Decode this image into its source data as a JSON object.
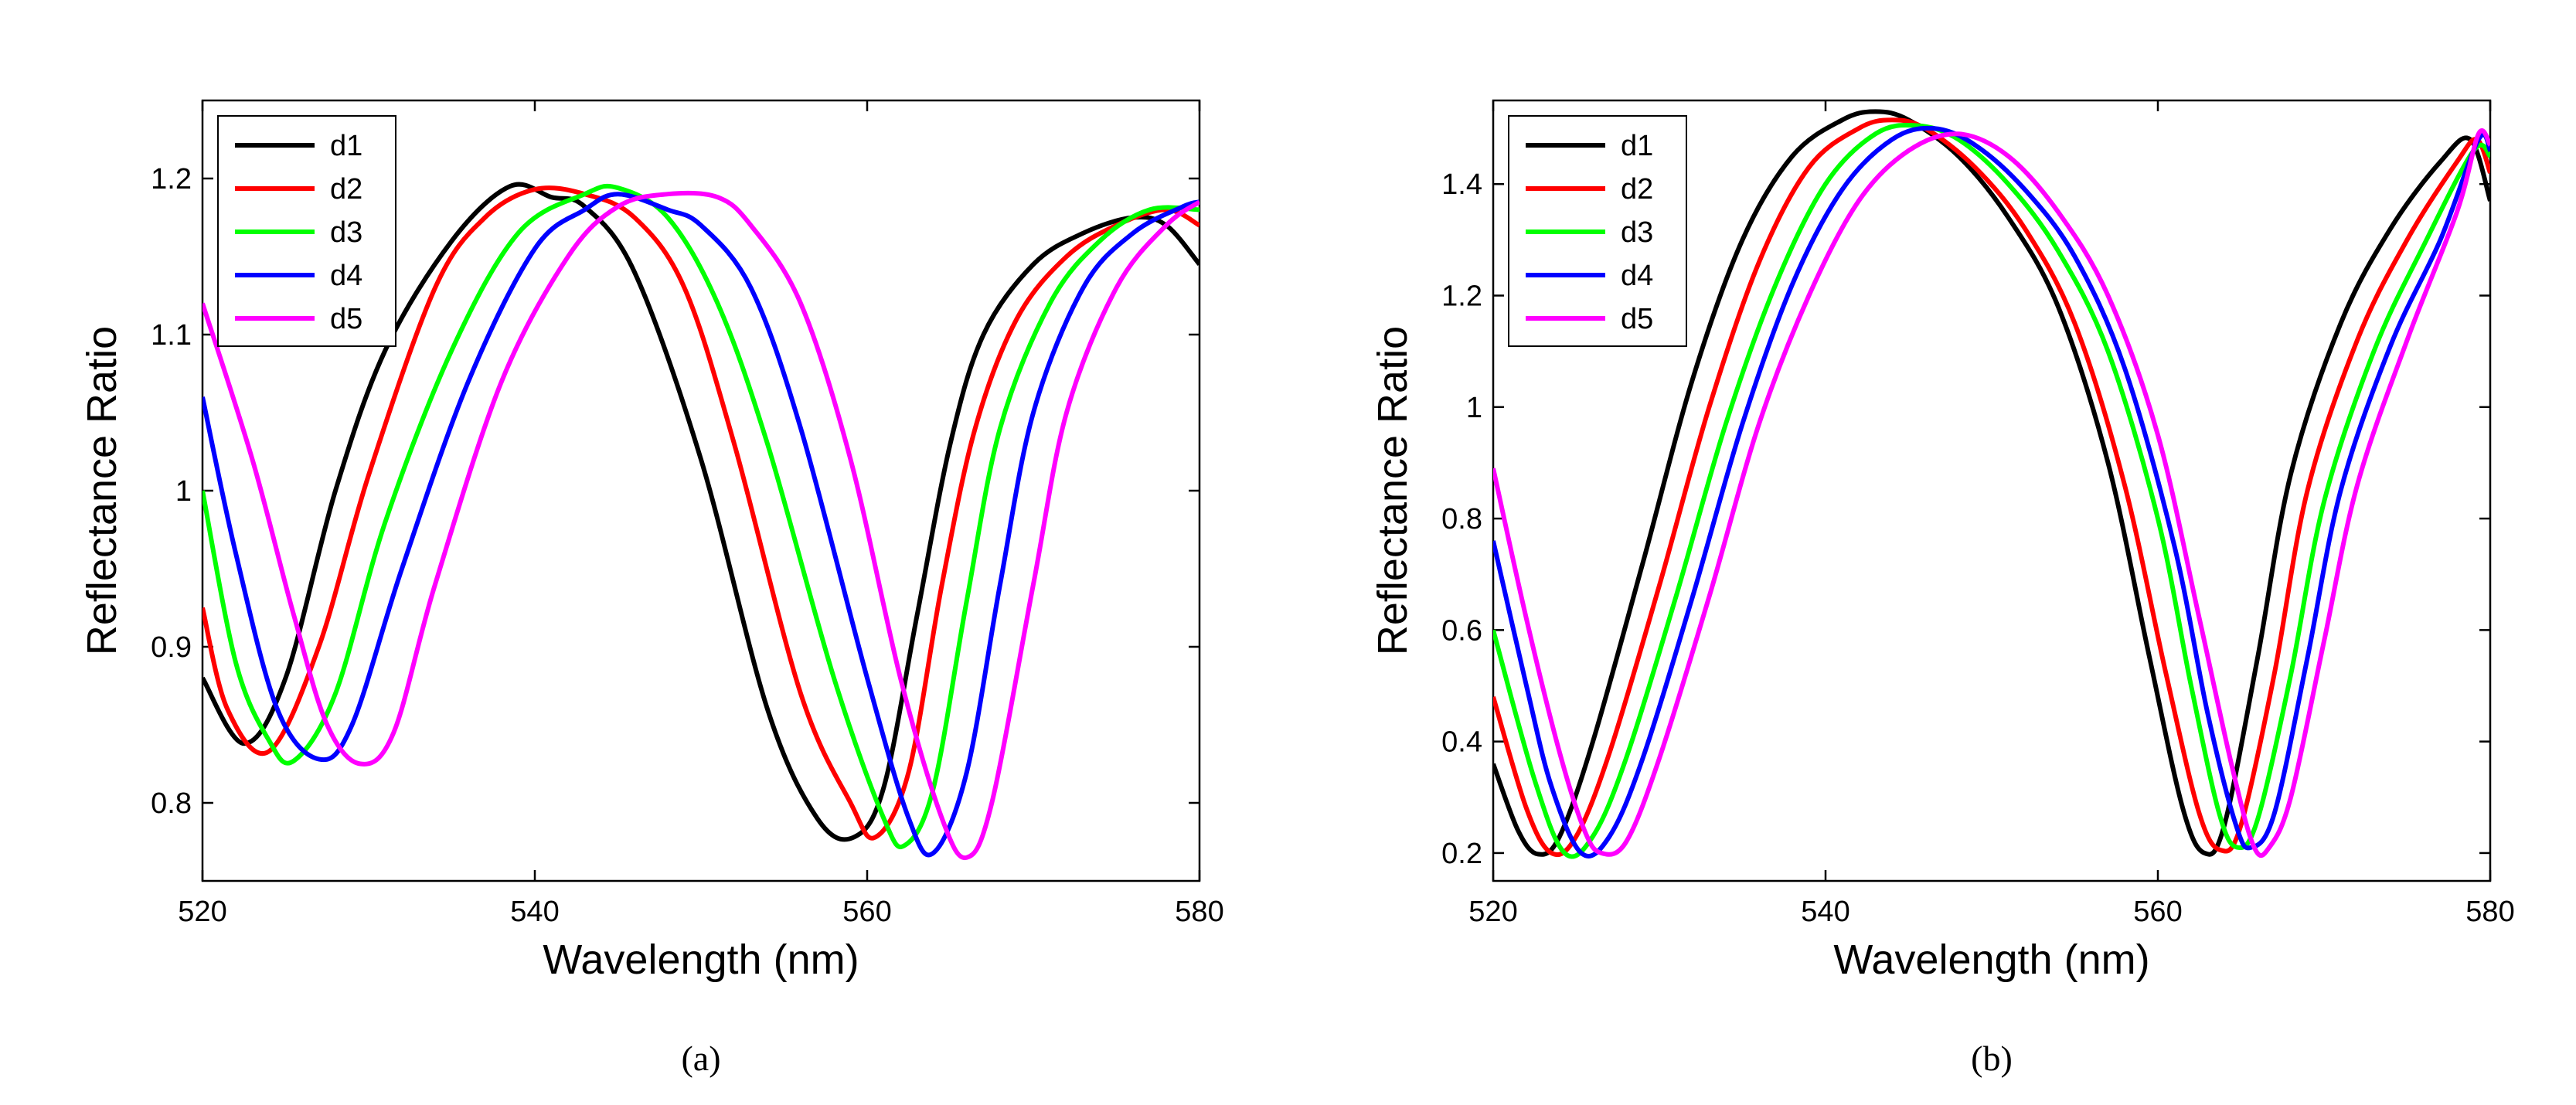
{
  "chart_data": [
    {
      "type": "line",
      "panel_label": "(a)",
      "xlabel": "Wavelength (nm)",
      "ylabel": "Reflectance Ratio",
      "xlim": [
        520,
        580
      ],
      "ylim": [
        0.75,
        1.25
      ],
      "xticks": [
        520,
        540,
        560,
        580
      ],
      "yticks": [
        0.8,
        0.9,
        1,
        1.1,
        1.2
      ],
      "legend_position": "top-left",
      "series": [
        {
          "name": "d1",
          "color": "#000000",
          "points": [
            [
              520,
              0.88
            ],
            [
              522.5,
              0.838
            ],
            [
              525,
              0.88
            ],
            [
              528,
              1.0
            ],
            [
              531,
              1.09
            ],
            [
              535,
              1.16
            ],
            [
              538.5,
              1.195
            ],
            [
              541,
              1.188
            ],
            [
              543,
              1.182
            ],
            [
              546,
              1.14
            ],
            [
              550,
              1.02
            ],
            [
              554,
              0.86
            ],
            [
              557,
              0.79
            ],
            [
              559.2,
              0.778
            ],
            [
              561,
              0.81
            ],
            [
              563,
              0.92
            ],
            [
              565,
              1.03
            ],
            [
              567,
              1.1
            ],
            [
              570,
              1.145
            ],
            [
              573,
              1.165
            ],
            [
              576,
              1.175
            ],
            [
              578,
              1.17
            ],
            [
              580,
              1.145
            ]
          ]
        },
        {
          "name": "d2",
          "color": "#ff0000",
          "points": [
            [
              520,
              0.925
            ],
            [
              521.5,
              0.86
            ],
            [
              524,
              0.833
            ],
            [
              527,
              0.9
            ],
            [
              530,
              1.01
            ],
            [
              534,
              1.13
            ],
            [
              537,
              1.175
            ],
            [
              540,
              1.193
            ],
            [
              543,
              1.19
            ],
            [
              546,
              1.175
            ],
            [
              549,
              1.13
            ],
            [
              552,
              1.03
            ],
            [
              556,
              0.87
            ],
            [
              559,
              0.8
            ],
            [
              560.5,
              0.778
            ],
            [
              562.5,
              0.82
            ],
            [
              564.5,
              0.94
            ],
            [
              566.5,
              1.04
            ],
            [
              569,
              1.11
            ],
            [
              572,
              1.15
            ],
            [
              575,
              1.17
            ],
            [
              578,
              1.18
            ],
            [
              580,
              1.17
            ]
          ]
        },
        {
          "name": "d3",
          "color": "#00ff00",
          "points": [
            [
              520,
              1.0
            ],
            [
              522,
              0.89
            ],
            [
              524,
              0.84
            ],
            [
              525.5,
              0.827
            ],
            [
              528,
              0.87
            ],
            [
              531,
              0.98
            ],
            [
              535,
              1.09
            ],
            [
              539,
              1.165
            ],
            [
              543,
              1.19
            ],
            [
              545,
              1.194
            ],
            [
              548,
              1.175
            ],
            [
              551,
              1.12
            ],
            [
              554,
              1.03
            ],
            [
              558,
              0.88
            ],
            [
              561,
              0.79
            ],
            [
              562.3,
              0.773
            ],
            [
              564,
              0.81
            ],
            [
              566,
              0.93
            ],
            [
              568,
              1.04
            ],
            [
              571,
              1.12
            ],
            [
              574,
              1.16
            ],
            [
              577,
              1.18
            ],
            [
              580,
              1.18
            ]
          ]
        },
        {
          "name": "d4",
          "color": "#0000ff",
          "points": [
            [
              520,
              1.06
            ],
            [
              522,
              0.96
            ],
            [
              524.5,
              0.86
            ],
            [
              527,
              0.828
            ],
            [
              529,
              0.85
            ],
            [
              532,
              0.95
            ],
            [
              536,
              1.07
            ],
            [
              540,
              1.155
            ],
            [
              543,
              1.18
            ],
            [
              545,
              1.19
            ],
            [
              548,
              1.18
            ],
            [
              550,
              1.17
            ],
            [
              553,
              1.13
            ],
            [
              556,
              1.04
            ],
            [
              560,
              0.88
            ],
            [
              562.5,
              0.79
            ],
            [
              564,
              0.768
            ],
            [
              566,
              0.82
            ],
            [
              568,
              0.94
            ],
            [
              570,
              1.05
            ],
            [
              573,
              1.13
            ],
            [
              576,
              1.165
            ],
            [
              579,
              1.182
            ],
            [
              580,
              1.185
            ]
          ]
        },
        {
          "name": "d5",
          "color": "#ff00ff",
          "points": [
            [
              520,
              1.12
            ],
            [
              523,
              1.02
            ],
            [
              525.5,
              0.92
            ],
            [
              527.5,
              0.85
            ],
            [
              529.5,
              0.825
            ],
            [
              531.5,
              0.845
            ],
            [
              534,
              0.94
            ],
            [
              538,
              1.07
            ],
            [
              542,
              1.15
            ],
            [
              545,
              1.182
            ],
            [
              548,
              1.19
            ],
            [
              551,
              1.188
            ],
            [
              553,
              1.17
            ],
            [
              556,
              1.12
            ],
            [
              559,
              1.02
            ],
            [
              562,
              0.88
            ],
            [
              564.5,
              0.79
            ],
            [
              566,
              0.765
            ],
            [
              567.5,
              0.8
            ],
            [
              570,
              0.94
            ],
            [
              572,
              1.05
            ],
            [
              575,
              1.13
            ],
            [
              578,
              1.17
            ],
            [
              580,
              1.185
            ]
          ]
        }
      ]
    },
    {
      "type": "line",
      "panel_label": "(b)",
      "xlabel": "Wavelength (nm)",
      "ylabel": "Reflectance Ratio",
      "xlim": [
        520,
        580
      ],
      "ylim": [
        0.15,
        1.55
      ],
      "xticks": [
        520,
        540,
        560,
        580
      ],
      "yticks": [
        0.2,
        0.4,
        0.6,
        0.8,
        1,
        1.2,
        1.4
      ],
      "legend_position": "top-left",
      "series": [
        {
          "name": "d1",
          "color": "#000000",
          "points": [
            [
              520,
              0.36
            ],
            [
              521.5,
              0.24
            ],
            [
              522.7,
              0.198
            ],
            [
              524,
              0.23
            ],
            [
              526,
              0.4
            ],
            [
              529,
              0.72
            ],
            [
              532,
              1.05
            ],
            [
              535,
              1.3
            ],
            [
              538,
              1.45
            ],
            [
              541,
              1.515
            ],
            [
              543,
              1.53
            ],
            [
              545,
              1.515
            ],
            [
              548,
              1.45
            ],
            [
              551,
              1.34
            ],
            [
              554,
              1.18
            ],
            [
              557,
              0.9
            ],
            [
              559.5,
              0.55
            ],
            [
              561.5,
              0.28
            ],
            [
              562.8,
              0.2
            ],
            [
              564,
              0.25
            ],
            [
              566,
              0.55
            ],
            [
              568,
              0.88
            ],
            [
              571,
              1.15
            ],
            [
              574,
              1.32
            ],
            [
              577,
              1.44
            ],
            [
              578.8,
              1.48
            ],
            [
              580,
              1.37
            ]
          ]
        },
        {
          "name": "d2",
          "color": "#ff0000",
          "points": [
            [
              520,
              0.48
            ],
            [
              522,
              0.28
            ],
            [
              523.5,
              0.2
            ],
            [
              525,
              0.23
            ],
            [
              527,
              0.38
            ],
            [
              530,
              0.68
            ],
            [
              533,
              1.0
            ],
            [
              536,
              1.26
            ],
            [
              539,
              1.43
            ],
            [
              542,
              1.5
            ],
            [
              544,
              1.515
            ],
            [
              546,
              1.5
            ],
            [
              549,
              1.43
            ],
            [
              552,
              1.32
            ],
            [
              555,
              1.15
            ],
            [
              558,
              0.86
            ],
            [
              560.5,
              0.52
            ],
            [
              562.5,
              0.27
            ],
            [
              563.8,
              0.205
            ],
            [
              565,
              0.25
            ],
            [
              567,
              0.52
            ],
            [
              569,
              0.85
            ],
            [
              572,
              1.12
            ],
            [
              575,
              1.3
            ],
            [
              578,
              1.44
            ],
            [
              579.2,
              1.48
            ],
            [
              580,
              1.42
            ]
          ]
        },
        {
          "name": "d3",
          "color": "#00ff00",
          "points": [
            [
              520,
              0.6
            ],
            [
              522.5,
              0.33
            ],
            [
              524.3,
              0.2
            ],
            [
              526,
              0.23
            ],
            [
              528,
              0.37
            ],
            [
              531,
              0.66
            ],
            [
              534,
              0.97
            ],
            [
              537,
              1.22
            ],
            [
              540,
              1.4
            ],
            [
              543,
              1.49
            ],
            [
              545.5,
              1.505
            ],
            [
              548,
              1.48
            ],
            [
              551,
              1.4
            ],
            [
              554,
              1.28
            ],
            [
              557,
              1.1
            ],
            [
              560,
              0.8
            ],
            [
              562,
              0.5
            ],
            [
              563.7,
              0.27
            ],
            [
              564.8,
              0.21
            ],
            [
              566,
              0.26
            ],
            [
              568,
              0.52
            ],
            [
              570,
              0.83
            ],
            [
              573,
              1.1
            ],
            [
              576,
              1.29
            ],
            [
              579,
              1.46
            ],
            [
              580,
              1.45
            ]
          ]
        },
        {
          "name": "d4",
          "color": "#0000ff",
          "points": [
            [
              520,
              0.76
            ],
            [
              522,
              0.5
            ],
            [
              523.5,
              0.32
            ],
            [
              525.3,
              0.2
            ],
            [
              527,
              0.23
            ],
            [
              529,
              0.37
            ],
            [
              532,
              0.66
            ],
            [
              535,
              0.97
            ],
            [
              538,
              1.22
            ],
            [
              541,
              1.39
            ],
            [
              544,
              1.48
            ],
            [
              546.5,
              1.5
            ],
            [
              549,
              1.47
            ],
            [
              552,
              1.39
            ],
            [
              555,
              1.27
            ],
            [
              558,
              1.07
            ],
            [
              561,
              0.75
            ],
            [
              563,
              0.45
            ],
            [
              564.7,
              0.25
            ],
            [
              565.6,
              0.21
            ],
            [
              567,
              0.27
            ],
            [
              569,
              0.55
            ],
            [
              571,
              0.85
            ],
            [
              574,
              1.11
            ],
            [
              577,
              1.3
            ],
            [
              579.3,
              1.48
            ],
            [
              580,
              1.46
            ]
          ]
        },
        {
          "name": "d5",
          "color": "#ff00ff",
          "points": [
            [
              520,
              0.89
            ],
            [
              522,
              0.62
            ],
            [
              524,
              0.38
            ],
            [
              525.5,
              0.24
            ],
            [
              526.5,
              0.2
            ],
            [
              528,
              0.22
            ],
            [
              530,
              0.37
            ],
            [
              533,
              0.66
            ],
            [
              536,
              0.97
            ],
            [
              539,
              1.2
            ],
            [
              542,
              1.37
            ],
            [
              545,
              1.46
            ],
            [
              548,
              1.49
            ],
            [
              551,
              1.45
            ],
            [
              554,
              1.35
            ],
            [
              557,
              1.2
            ],
            [
              560,
              0.95
            ],
            [
              562.5,
              0.62
            ],
            [
              564.5,
              0.35
            ],
            [
              565.8,
              0.21
            ],
            [
              566.7,
              0.21
            ],
            [
              568,
              0.3
            ],
            [
              570,
              0.58
            ],
            [
              572,
              0.86
            ],
            [
              575,
              1.12
            ],
            [
              578,
              1.35
            ],
            [
              579.3,
              1.49
            ],
            [
              580,
              1.47
            ]
          ]
        }
      ]
    }
  ]
}
